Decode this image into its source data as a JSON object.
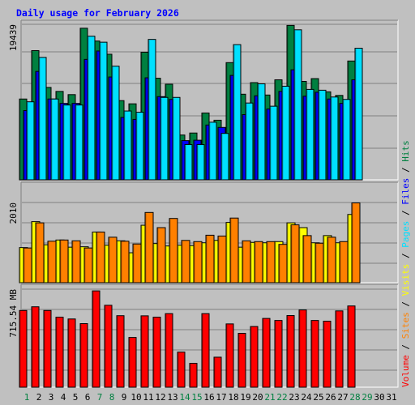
{
  "chart_data": {
    "type": "bar",
    "title": "Daily usage for February 2026",
    "days": [
      "1",
      "2",
      "3",
      "4",
      "5",
      "6",
      "7",
      "8",
      "9",
      "10",
      "11",
      "12",
      "13",
      "14",
      "15",
      "16",
      "17",
      "18",
      "19",
      "20",
      "21",
      "22",
      "23",
      "24",
      "25",
      "26",
      "27",
      "28",
      "29",
      "30",
      "31"
    ],
    "weekend_days": [
      "1",
      "7",
      "8",
      "14",
      "15",
      "21",
      "22",
      "28",
      "29"
    ],
    "colors": {
      "hits": "#008040",
      "files": "#0000ff",
      "pages": "#00e0ff",
      "visits": "#ffff00",
      "sites": "#ff8000",
      "volume": "#ff0000",
      "title": "#0000ff",
      "weekend_label": "#008040",
      "weekday_label": "#000000"
    },
    "panels": [
      {
        "name": "hits-files-pages",
        "max_label": "19439",
        "max": 19439,
        "series": [
          {
            "name": "Hits",
            "color": "#008040",
            "values": [
              10100,
              16150,
              11550,
              11050,
              10650,
              18950,
              17350,
              15700,
              9900,
              9500,
              15950,
              12700,
              11950,
              5600,
              5850,
              8350,
              7450,
              14650,
              10700,
              12150,
              10600,
              12500,
              19300,
              12300,
              12650,
              11000,
              10550,
              14850,
              null,
              null,
              null
            ]
          },
          {
            "name": "Files",
            "color": "#0000ff",
            "values": [
              8650,
              13550,
              10100,
              9550,
              9550,
              15050,
              16100,
              12850,
              7800,
              7550,
              12750,
              10400,
              10050,
              4900,
              4950,
              6850,
              6550,
              13050,
              8150,
              10500,
              8850,
              11050,
              13750,
              10450,
              10950,
              10100,
              9550,
              12500,
              null,
              null,
              null
            ]
          },
          {
            "name": "Pages",
            "color": "#00e0ff",
            "values": [
              9750,
              15300,
              10100,
              9350,
              9350,
              17950,
              17200,
              14200,
              8600,
              8450,
              17550,
              10300,
              10300,
              4400,
              4400,
              7200,
              5800,
              16900,
              9600,
              12000,
              9200,
              11700,
              18750,
              11300,
              11200,
              10350,
              10050,
              16450,
              null,
              null,
              null
            ]
          }
        ]
      },
      {
        "name": "visits-sites",
        "max_label": "2010",
        "max": 2010,
        "series": [
          {
            "name": "Visits",
            "color": "#ffff00",
            "values": [
              880,
              1530,
              950,
              1070,
              890,
              900,
              1270,
              940,
              1050,
              750,
              1440,
              980,
              920,
              940,
              930,
              1000,
              1060,
              1510,
              890,
              1010,
              1000,
              1030,
              1500,
              1380,
              1000,
              1180,
              1000,
              1710,
              null,
              null,
              null
            ]
          },
          {
            "name": "Sites",
            "color": "#ff8000",
            "values": [
              870,
              1500,
              1040,
              1070,
              1050,
              870,
              1270,
              1140,
              1040,
              970,
              1760,
              1380,
              1610,
              1060,
              1030,
              1190,
              1170,
              1620,
              1050,
              1030,
              1030,
              960,
              1450,
              1180,
              990,
              1140,
              1030,
              2000,
              null,
              null,
              null
            ]
          }
        ]
      },
      {
        "name": "volume",
        "max_label": "715.54 MB",
        "max": 715.54,
        "series": [
          {
            "name": "Volume",
            "color": "#ff0000",
            "values": [
              560,
              587,
              560,
              511,
              498,
              464,
              703,
              598,
              522,
              363,
              521,
              511,
              537,
              256,
              174,
              537,
              219,
              462,
              393,
              443,
              502,
              487,
              523,
              564,
              487,
              482,
              557,
              593,
              null,
              null,
              null
            ]
          }
        ]
      }
    ],
    "legend": {
      "volume": "Volume",
      "sites": "Sites",
      "visits": "Visits",
      "pages": "Pages",
      "files": "Files",
      "hits": "Hits",
      "separator": " / "
    }
  }
}
